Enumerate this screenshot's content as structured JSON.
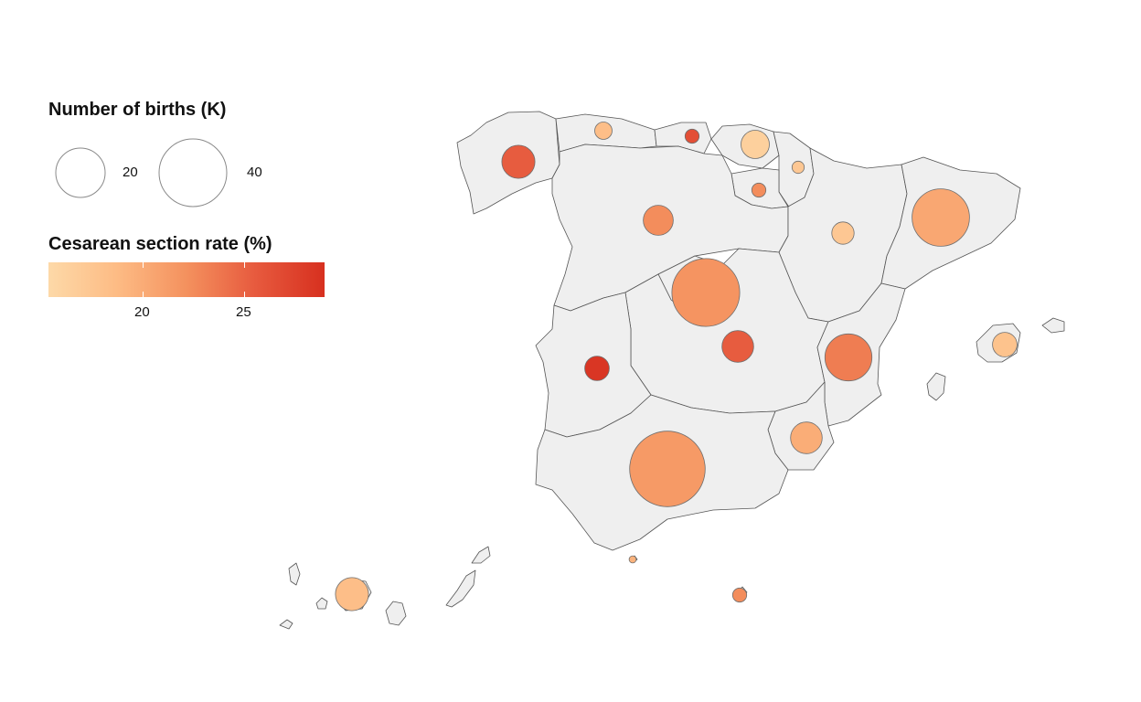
{
  "legend": {
    "size_title": "Number of births (K)",
    "size_entries": [
      {
        "label": "20",
        "value": 20
      },
      {
        "label": "40",
        "value": 40
      }
    ],
    "color_title": "Cesarean section rate (%)",
    "color_ticks": [
      {
        "label": "20",
        "value": 20
      },
      {
        "label": "25",
        "value": 25
      }
    ],
    "color_range": [
      16,
      29.5
    ],
    "color_stops": [
      "#fdd9a8",
      "#fdbb84",
      "#f4915e",
      "#e75a3e",
      "#d7301f"
    ]
  },
  "chart_data": {
    "type": "bubble-map",
    "size_variable": "Number of births (K)",
    "color_variable": "Cesarean section rate (%)",
    "points": [
      {
        "births": 11,
        "rate": 26
      },
      {
        "births": 3,
        "rate": 19
      },
      {
        "births": 2,
        "rate": 27
      },
      {
        "births": 8,
        "rate": 17
      },
      {
        "births": 1.5,
        "rate": 18
      },
      {
        "births": 2,
        "rate": 23
      },
      {
        "births": 9,
        "rate": 23
      },
      {
        "births": 5,
        "rate": 18
      },
      {
        "births": 46,
        "rate": 22.5
      },
      {
        "births": 33,
        "rate": 21
      },
      {
        "births": 10,
        "rate": 26
      },
      {
        "births": 6,
        "rate": 29
      },
      {
        "births": 22,
        "rate": 24
      },
      {
        "births": 10,
        "rate": 20.5
      },
      {
        "births": 57,
        "rate": 22
      },
      {
        "births": 6,
        "rate": 18.5
      },
      {
        "births": 11,
        "rate": 19
      },
      {
        "births": 0.5,
        "rate": 20
      },
      {
        "births": 2,
        "rate": 23
      }
    ]
  }
}
